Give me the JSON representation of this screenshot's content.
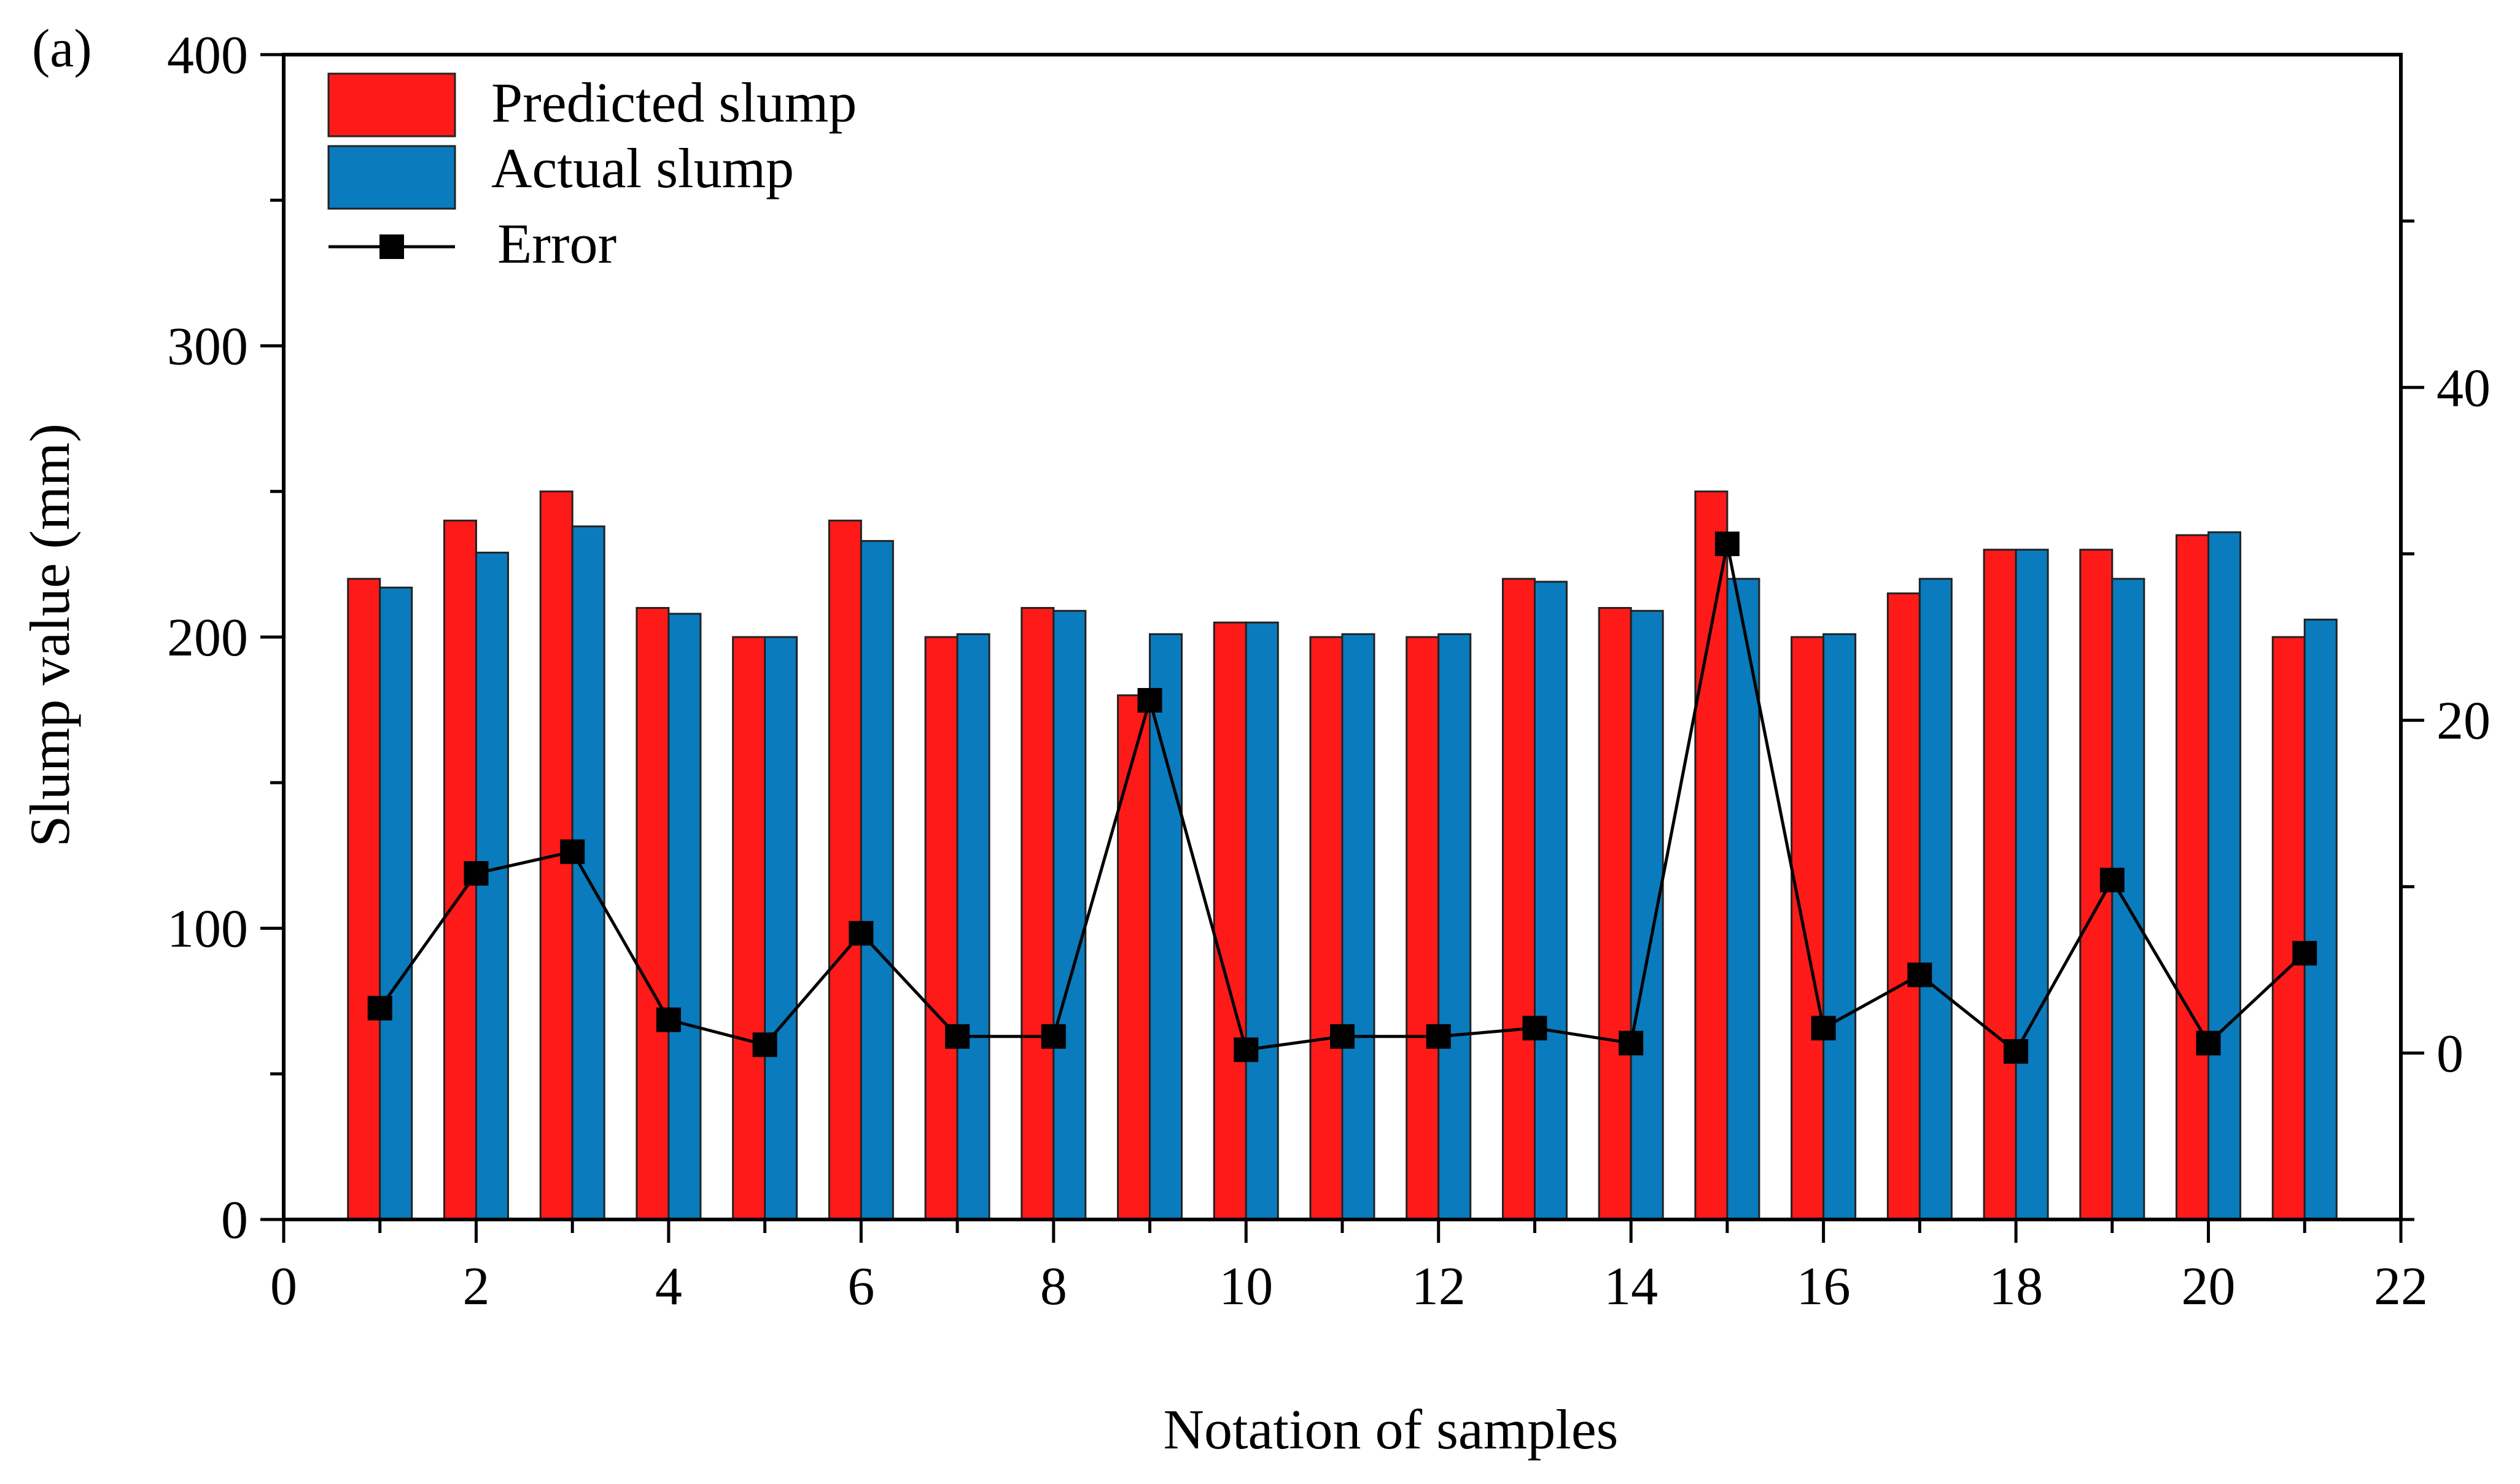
{
  "chart_data": {
    "type": "bar",
    "panel_label": "(a)",
    "xlabel": "Notation of samples",
    "ylabel": "Slump value (mm)",
    "xlim": [
      0,
      22
    ],
    "ylim": [
      0,
      400
    ],
    "y2lim": [
      -10,
      60
    ],
    "x_ticks": [
      0,
      2,
      4,
      6,
      8,
      10,
      12,
      14,
      16,
      18,
      20,
      22
    ],
    "y_ticks": [
      0,
      100,
      200,
      300,
      400
    ],
    "y2_ticks": [
      0,
      20,
      40
    ],
    "x": [
      1,
      2,
      3,
      4,
      5,
      6,
      7,
      8,
      9,
      10,
      11,
      12,
      13,
      14,
      15,
      16,
      17,
      18,
      19,
      20,
      21
    ],
    "series": [
      {
        "name": "Predicted slump",
        "kind": "bar",
        "color": "#ff1a1a",
        "values": [
          220,
          240,
          250,
          210,
          200,
          240,
          200,
          210,
          180,
          205,
          200,
          200,
          220,
          210,
          250,
          200,
          215,
          230,
          230,
          235,
          200
        ]
      },
      {
        "name": "Actual slump",
        "kind": "bar",
        "color": "#0a7bbd",
        "values": [
          217,
          229,
          238,
          208,
          200,
          233,
          201,
          209,
          201,
          205,
          201,
          201,
          219,
          209,
          220,
          201,
          220,
          230,
          220,
          236,
          206
        ]
      },
      {
        "name": "Error",
        "kind": "line",
        "axis": "right",
        "color": "#000000",
        "values": [
          2.7,
          10.8,
          12.1,
          2.0,
          0.5,
          7.2,
          1.0,
          1.0,
          21.2,
          0.2,
          1.0,
          1.0,
          1.5,
          0.6,
          30.6,
          1.5,
          4.7,
          0.1,
          10.4,
          0.6,
          6.0
        ]
      }
    ]
  }
}
